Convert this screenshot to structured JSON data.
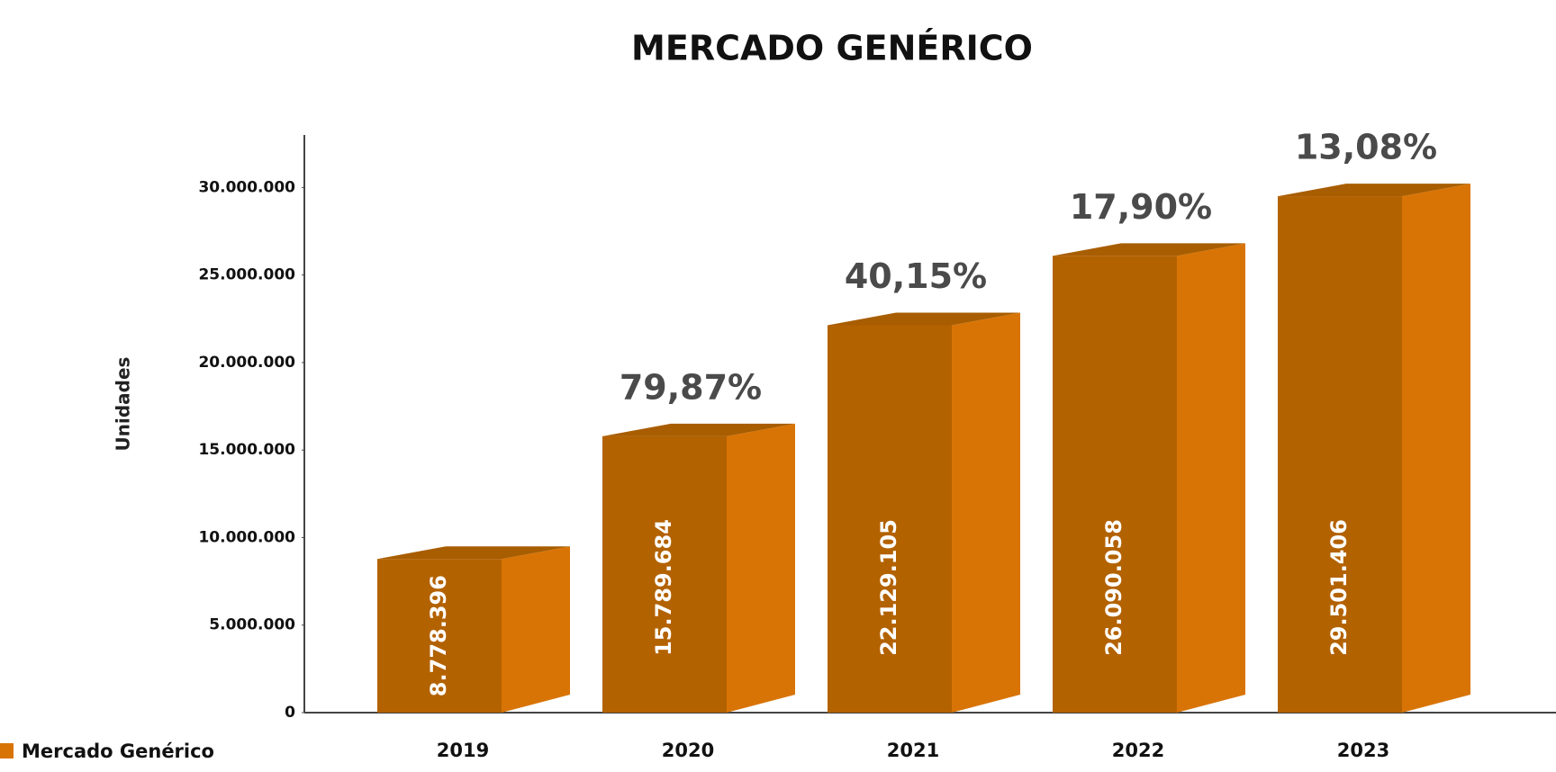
{
  "chart_data": {
    "type": "bar3d",
    "title": "MERCADO GENÉRICO",
    "y_label": "Unidades",
    "categories": [
      "2019",
      "2020",
      "2021",
      "2022",
      "2023"
    ],
    "series": [
      {
        "name": "Mercado Genérico",
        "color": "#b36200",
        "values": [
          8778396,
          15789684,
          22129105,
          26090058,
          29501406
        ],
        "value_labels": [
          "8.778.396",
          "15.789.684",
          "22.129.105",
          "26.090.058",
          "29.501.406"
        ]
      }
    ],
    "annotations": [
      "79,87%",
      "40,15%",
      "17,90%",
      "13,08%"
    ],
    "ylim": [
      0,
      33000000
    ],
    "yticks": [
      0,
      {
        "value": 5000000,
        "label": "5.000.000"
      },
      {
        "value": 10000000,
        "label": "10.000.000"
      },
      {
        "value": 15000000,
        "label": "15.000.000"
      },
      {
        "value": 20000000,
        "label": "20.000.000"
      },
      {
        "value": 25000000,
        "label": "25.000.000"
      },
      {
        "value": 30000000,
        "label": "30.000.000"
      }
    ],
    "legend": "bottom-left"
  }
}
